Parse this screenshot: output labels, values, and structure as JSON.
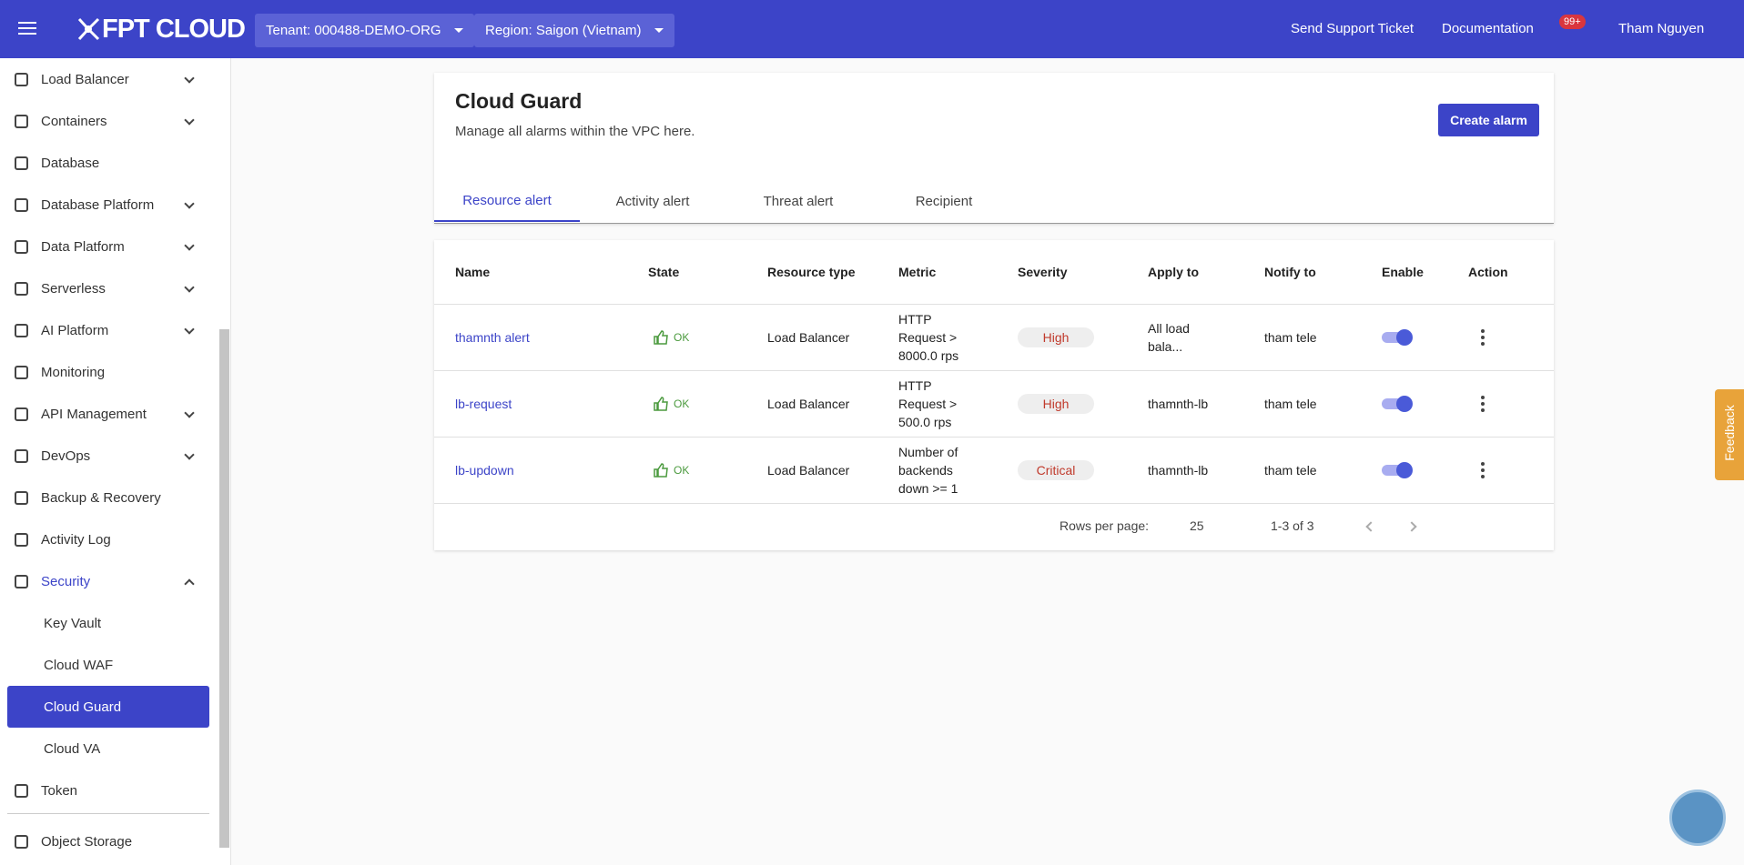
{
  "header": {
    "logo": "FPT CLOUD",
    "tenant": "Tenant: 000488-DEMO-ORG",
    "region": "Region: Saigon (Vietnam)",
    "support": "Send Support Ticket",
    "docs": "Documentation",
    "notifications": "99+",
    "user": "Tham Nguyen"
  },
  "sidebar": {
    "items": [
      {
        "label": "Load Balancer",
        "chevron": "down"
      },
      {
        "label": "Containers",
        "chevron": "down"
      },
      {
        "label": "Database"
      },
      {
        "label": "Database Platform",
        "chevron": "down"
      },
      {
        "label": "Data Platform",
        "chevron": "down"
      },
      {
        "label": "Serverless",
        "chevron": "down"
      },
      {
        "label": "AI Platform",
        "chevron": "down"
      },
      {
        "label": "Monitoring"
      },
      {
        "label": "API Management",
        "chevron": "down"
      },
      {
        "label": "DevOps",
        "chevron": "down"
      },
      {
        "label": "Backup & Recovery"
      },
      {
        "label": "Activity Log"
      },
      {
        "label": "Security",
        "chevron": "up",
        "open": true,
        "children": [
          {
            "label": "Key Vault"
          },
          {
            "label": "Cloud WAF"
          },
          {
            "label": "Cloud Guard",
            "active": true
          },
          {
            "label": "Cloud VA"
          }
        ]
      },
      {
        "label": "Token"
      }
    ],
    "bottom": {
      "label": "Object Storage"
    }
  },
  "page": {
    "title": "Cloud Guard",
    "subtitle": "Manage all alarms within the VPC here.",
    "button": "Create alarm",
    "tabs": [
      "Resource alert",
      "Activity alert",
      "Threat alert",
      "Recipient"
    ],
    "active_tab": 0
  },
  "table": {
    "columns": [
      "Name",
      "State",
      "Resource type",
      "Metric",
      "Severity",
      "Apply to",
      "Notify to",
      "Enable",
      "Action"
    ],
    "rows": [
      {
        "name": "thamnth alert",
        "state": "OK",
        "resource_type": "Load Balancer",
        "metric": "HTTP Request > 8000.0 rps",
        "severity": "High",
        "apply_to": "All load bala...",
        "notify_to": "tham tele",
        "enabled": true
      },
      {
        "name": "lb-request",
        "state": "OK",
        "resource_type": "Load Balancer",
        "metric": "HTTP Request > 500.0 rps",
        "severity": "High",
        "apply_to": "thamnth-lb",
        "notify_to": "tham tele",
        "enabled": true
      },
      {
        "name": "lb-updown",
        "state": "OK",
        "resource_type": "Load Balancer",
        "metric": "Number of backends down >= 1",
        "severity": "Critical",
        "apply_to": "thamnth-lb",
        "notify_to": "tham tele",
        "enabled": true
      }
    ]
  },
  "pagination": {
    "rows_per_page_label": "Rows per page:",
    "rows_per_page": 25,
    "range": "1-3 of 3"
  },
  "feedback": "Feedback"
}
